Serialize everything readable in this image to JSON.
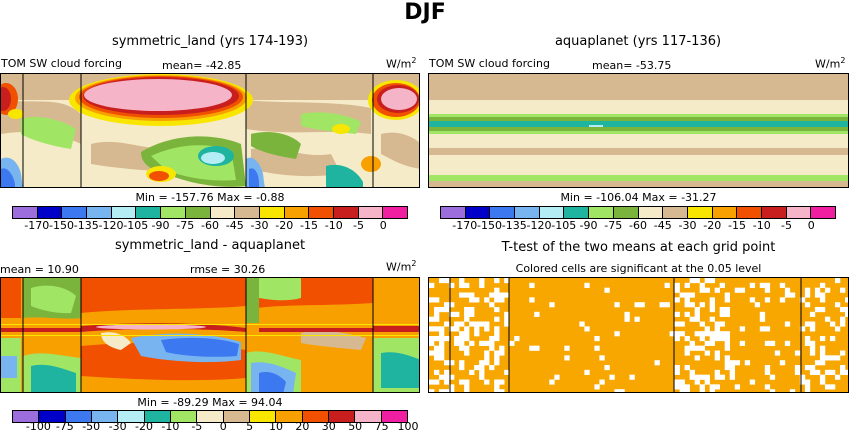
{
  "title": "DJF",
  "colors": {
    "orange": "#f7a700",
    "white": "#ffffff"
  },
  "panels": {
    "tl": {
      "title": "symmetric_land (yrs 174-193)",
      "left_label": "TOM  SW cloud forcing",
      "mean_label": "mean= -42.85",
      "unit": "W/m",
      "unit_sup": "2",
      "minmax": "Min = -157.76 Max = -0.88"
    },
    "tr": {
      "title": "aquaplanet (yrs 117-136)",
      "left_label": "TOM  SW cloud forcing",
      "mean_label": "mean= -53.75",
      "unit": "W/m",
      "unit_sup": "2",
      "minmax": "Min = -106.04 Max = -31.27"
    },
    "bl": {
      "title": "symmetric_land - aquaplanet",
      "mean_label": "mean =  10.90",
      "rmse_label": "rmse =  30.26",
      "unit": "W/m",
      "unit_sup": "2",
      "minmax": "Min = -89.29 Max = 94.04"
    },
    "br": {
      "title": "T-test of the two means at each grid point",
      "subtitle": "Colored cells are significant at the 0.05 level"
    }
  },
  "chart_data": [
    {
      "type": "heatmap",
      "title": "symmetric_land (yrs 174-193)",
      "variable": "TOM SW cloud forcing",
      "units": "W/m2",
      "mean": -42.85,
      "min": -157.76,
      "max": -0.88,
      "colorbar": {
        "ticks": [
          "-170",
          "-150",
          "-135",
          "-120",
          "-105",
          "-90",
          "-75",
          "-60",
          "-45",
          "-30",
          "-20",
          "-15",
          "-10",
          "-5",
          "0"
        ],
        "colors": [
          "#9b6ddd",
          "#0000c8",
          "#3c78f0",
          "#78b4f0",
          "#b4eef4",
          "#1eb4a0",
          "#a0e664",
          "#7ab43c",
          "#f5ebc8",
          "#d7b991",
          "#f8e600",
          "#f8a000",
          "#f05000",
          "#c81e1e",
          "#f5b4c8",
          "#f01ea0"
        ]
      }
    },
    {
      "type": "heatmap",
      "title": "aquaplanet (yrs 117-136)",
      "variable": "TOM SW cloud forcing",
      "units": "W/m2",
      "mean": -53.75,
      "min": -106.04,
      "max": -31.27,
      "colorbar": {
        "ticks": [
          "-170",
          "-150",
          "-135",
          "-120",
          "-105",
          "-90",
          "-75",
          "-60",
          "-45",
          "-30",
          "-20",
          "-15",
          "-10",
          "-5",
          "0"
        ],
        "colors": [
          "#9b6ddd",
          "#0000c8",
          "#3c78f0",
          "#78b4f0",
          "#b4eef4",
          "#1eb4a0",
          "#a0e664",
          "#7ab43c",
          "#f5ebc8",
          "#d7b991",
          "#f8e600",
          "#f8a000",
          "#f05000",
          "#c81e1e",
          "#f5b4c8",
          "#f01ea0"
        ]
      }
    },
    {
      "type": "heatmap",
      "title": "symmetric_land - aquaplanet",
      "units": "W/m2",
      "mean": 10.9,
      "rmse": 30.26,
      "min": -89.29,
      "max": 94.04,
      "colorbar": {
        "ticks": [
          "-100",
          "-75",
          "-50",
          "-30",
          "-20",
          "-10",
          "-5",
          "0",
          "5",
          "10",
          "20",
          "30",
          "50",
          "75",
          "100"
        ],
        "colors": [
          "#9b6ddd",
          "#0000c8",
          "#3c78f0",
          "#78b4f0",
          "#b4eef4",
          "#1eb4a0",
          "#a0e664",
          "#f5ebc8",
          "#d7b991",
          "#f8e600",
          "#f8a000",
          "#f05000",
          "#c81e1e",
          "#f5b4c8",
          "#f01ea0"
        ]
      }
    },
    {
      "type": "heatmap",
      "title": "T-test of the two means at each grid point",
      "note": "Colored cells are significant at the 0.05 level",
      "significance_level": 0.05
    }
  ]
}
